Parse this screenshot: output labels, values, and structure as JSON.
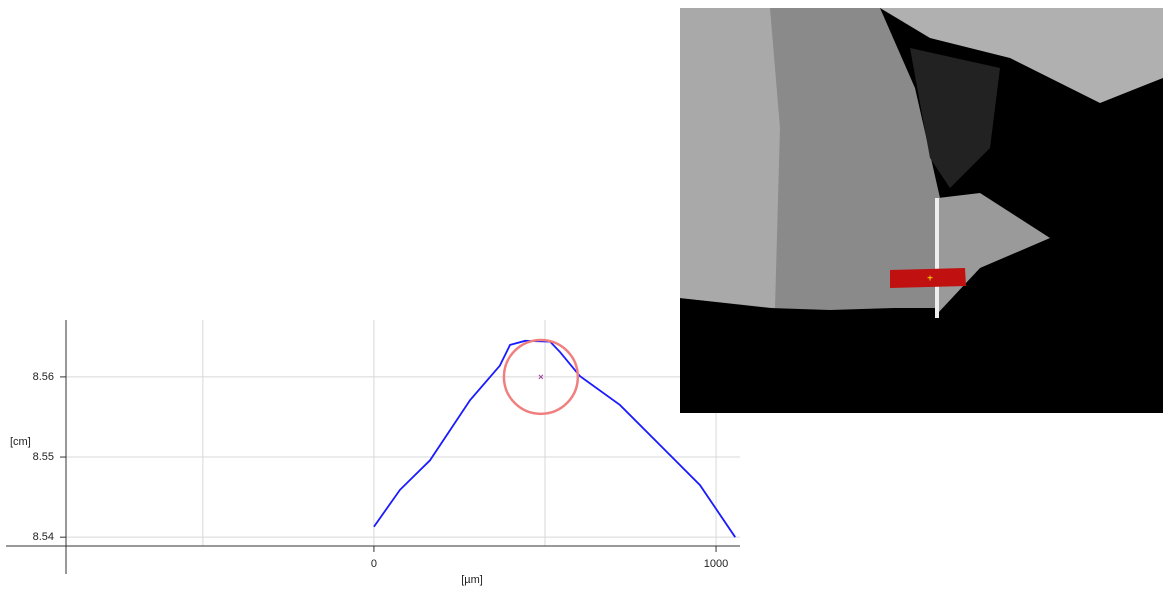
{
  "chart_data": {
    "type": "line",
    "x_label": "[µm]",
    "y_label": "[cm]",
    "xlim": [
      -900,
      1070
    ],
    "ylim": [
      8.5389,
      8.5671
    ],
    "xticks": [
      0,
      1000
    ],
    "yticks": [
      8.54,
      8.55,
      8.56
    ],
    "x_grid_lines": [
      -500,
      0,
      500,
      1000
    ],
    "grid": true,
    "x": [
      0,
      76,
      164,
      281,
      368,
      398,
      442,
      515,
      544,
      602,
      719,
      836,
      953,
      1056
    ],
    "series": [
      {
        "color": "#1a1aff",
        "values": [
          8.5413,
          8.5459,
          8.5496,
          8.5571,
          8.5614,
          8.564,
          8.5645,
          8.5644,
          8.5631,
          8.5601,
          8.5565,
          8.5515,
          8.5465,
          8.54
        ]
      }
    ],
    "circle": {
      "x": 488,
      "y": 8.56,
      "r": 108,
      "color": "#f08080"
    }
  }
}
